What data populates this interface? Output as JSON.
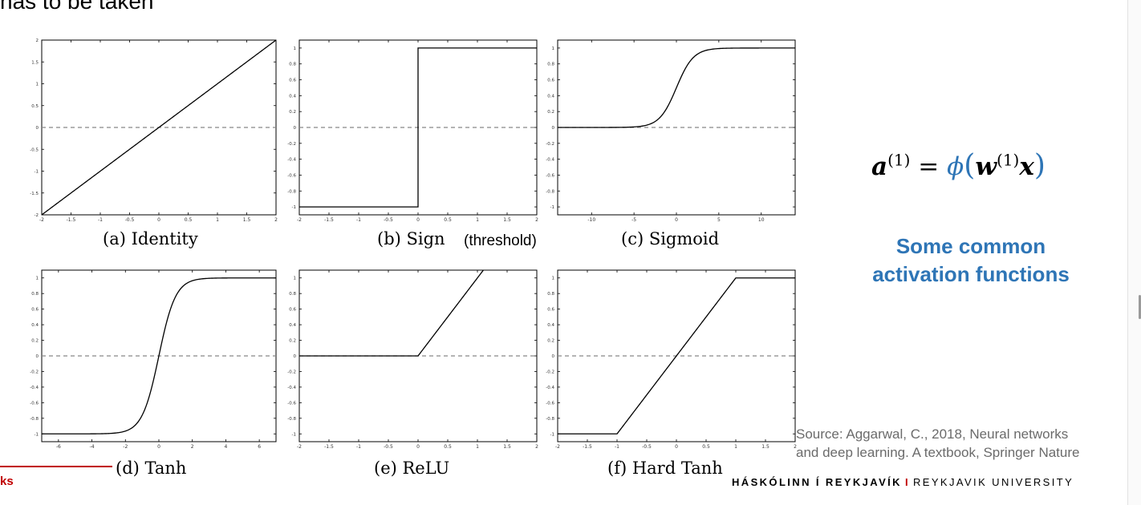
{
  "slide": {
    "top_text": "has to be taken",
    "formula_label": "a(1) = φ(w(1)x)",
    "formula": {
      "lhs": "a",
      "sup1": "(1)",
      "equals": "=",
      "phi": "ϕ",
      "open": "(",
      "w": "w",
      "sup2": "(1)",
      "x": "x",
      "close": ")"
    },
    "subtitle_line1": "Some common",
    "subtitle_line2": "activation functions",
    "source_line1": "Source: Aggarwal, C., 2018, Neural networks",
    "source_line2": "and deep learning. A textbook, Springer Nature",
    "footer_left": "ks",
    "footer_right_a": "HÁSKÓLINN Í REYKJAVÍK",
    "footer_sep": "I",
    "footer_right_b": "REYKJAVIK UNIVERSITY",
    "sign_note": "(threshold)",
    "colors": {
      "accent": "#2e75b6",
      "brand": "#c00000",
      "source": "#6b6b6b"
    }
  },
  "chart_data": [
    {
      "id": "identity",
      "type": "line",
      "title": "(a) Identity",
      "function": "identity",
      "xlim": [
        -2,
        2
      ],
      "ylim": [
        -2,
        2
      ],
      "xticks": [
        "-2",
        "-1.5",
        "-1",
        "-0.5",
        "0",
        "0.5",
        "1",
        "1.5",
        "2"
      ],
      "yticks": [
        "-2",
        "-1.5",
        "-1",
        "-0.5",
        "0",
        "0.5",
        "1",
        "1.5",
        "2"
      ],
      "x": [
        -2,
        2
      ],
      "y": [
        -2,
        2
      ],
      "baseline": 0
    },
    {
      "id": "sign",
      "type": "line",
      "title": "(b) Sign",
      "function": "sign",
      "xlim": [
        -2,
        2
      ],
      "ylim": [
        -1.1,
        1.1
      ],
      "xticks": [
        "-2",
        "-1.5",
        "-1",
        "-0.5",
        "0",
        "0.5",
        "1",
        "1.5",
        "2"
      ],
      "yticks": [
        "-1",
        "-0.8",
        "-0.6",
        "-0.4",
        "-0.2",
        "0",
        "0.2",
        "0.4",
        "0.6",
        "0.8",
        "1"
      ],
      "x": [
        -2,
        0,
        0,
        2
      ],
      "y": [
        -1,
        -1,
        1,
        1
      ],
      "baseline": 0
    },
    {
      "id": "sigmoid",
      "type": "line",
      "title": "(c) Sigmoid",
      "function": "sigmoid",
      "xlim": [
        -14,
        14
      ],
      "ylim": [
        -1.1,
        1.1
      ],
      "xticks": [
        "-10",
        "-5",
        "0",
        "5",
        "10"
      ],
      "yticks": [
        "-1",
        "-0.8",
        "-0.6",
        "-0.4",
        "-0.2",
        "0",
        "0.2",
        "0.4",
        "0.6",
        "0.8",
        "1"
      ],
      "x": [
        -14,
        -6,
        -4,
        -2,
        -1,
        0,
        1,
        2,
        4,
        6,
        14
      ],
      "y": [
        0,
        0.002,
        0.018,
        0.119,
        0.269,
        0.5,
        0.731,
        0.881,
        0.982,
        0.998,
        1
      ],
      "baseline": 0
    },
    {
      "id": "tanh",
      "type": "line",
      "title": "(d) Tanh",
      "function": "tanh",
      "xlim": [
        -7,
        7
      ],
      "ylim": [
        -1.1,
        1.1
      ],
      "xticks": [
        "-6",
        "-4",
        "-2",
        "0",
        "2",
        "4",
        "6"
      ],
      "yticks": [
        "-1",
        "-0.8",
        "-0.6",
        "-0.4",
        "-0.2",
        "0",
        "0.2",
        "0.4",
        "0.6",
        "0.8",
        "1"
      ],
      "x": [
        -7,
        -3,
        -2,
        -1,
        -0.5,
        0,
        0.5,
        1,
        2,
        3,
        7
      ],
      "y": [
        -1,
        -0.995,
        -0.964,
        -0.762,
        -0.462,
        0,
        0.462,
        0.762,
        0.964,
        0.995,
        1
      ],
      "baseline": 0
    },
    {
      "id": "relu",
      "type": "line",
      "title": "(e) ReLU",
      "function": "relu",
      "xlim": [
        -2,
        2
      ],
      "ylim": [
        -1.1,
        1.1
      ],
      "xticks": [
        "-2",
        "-1.5",
        "-1",
        "-0.5",
        "0",
        "0.5",
        "1",
        "1.5",
        "2"
      ],
      "yticks": [
        "-1",
        "-0.8",
        "-0.6",
        "-0.4",
        "-0.2",
        "0",
        "0.2",
        "0.4",
        "0.6",
        "0.8",
        "1"
      ],
      "x": [
        -2,
        0,
        1.1
      ],
      "y": [
        0,
        0,
        1.1
      ],
      "baseline": 0
    },
    {
      "id": "hardtanh",
      "type": "line",
      "title": "(f) Hard Tanh",
      "function": "hardtanh",
      "xlim": [
        -2,
        2
      ],
      "ylim": [
        -1.1,
        1.1
      ],
      "xticks": [
        "-2",
        "-1.5",
        "-1",
        "-0.5",
        "0",
        "0.5",
        "1",
        "1.5",
        "2"
      ],
      "yticks": [
        "-1",
        "-0.8",
        "-0.6",
        "-0.4",
        "-0.2",
        "0",
        "0.2",
        "0.4",
        "0.6",
        "0.8",
        "1"
      ],
      "x": [
        -2,
        -1,
        1,
        2
      ],
      "y": [
        -1,
        -1,
        1,
        1
      ],
      "baseline": 0
    }
  ]
}
